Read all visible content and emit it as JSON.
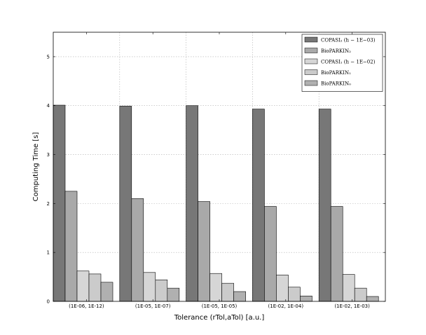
{
  "chart_data": {
    "type": "bar",
    "xlabel": "Tolerance (rTol,aTol) [a.u.]",
    "ylabel": "Computing Time [s]",
    "ylim": [
      0,
      5.5
    ],
    "yticks": [
      "0",
      "1",
      "2",
      "3",
      "4",
      "5"
    ],
    "grid": true,
    "legend_position": "top-right",
    "categories": [
      "(1E-06, 1E-12)",
      "(1E-05, 1E-07)",
      "(1E-05, 1E-05)",
      "(1E-02, 1E-04)",
      "(1E-02, 1E-03)"
    ],
    "series": [
      {
        "name": "COPASI$_{2}$ ($h-1E-03$)",
        "legend_label": "COPASI₂ (h − 1E−03)",
        "color": "#777777",
        "values": [
          4.01,
          3.99,
          4.0,
          3.93,
          3.93
        ]
      },
      {
        "name": "BioPARKIN$_{2}$",
        "legend_label": "BioPARKIN₂",
        "color": "#a9a9a9",
        "values": [
          2.25,
          2.1,
          2.04,
          1.94,
          1.94
        ]
      },
      {
        "name": "COPASI$_{1}$ ($h-1E-02$)",
        "legend_label": "COPASI₁ (h − 1E−02)",
        "color": "#d6d6d6",
        "values": [
          0.62,
          0.59,
          0.57,
          0.54,
          0.55
        ]
      },
      {
        "name": "BioPARKIN$_{1}$",
        "legend_label": "BioPARKIN₁",
        "color": "#cbcbcb",
        "values": [
          0.56,
          0.44,
          0.37,
          0.29,
          0.27
        ]
      },
      {
        "name": "BioPARKIN$_{0}$",
        "legend_label": "BioPARKIN₀",
        "color": "#b0b0b0",
        "values": [
          0.39,
          0.27,
          0.2,
          0.11,
          0.1
        ]
      }
    ]
  }
}
